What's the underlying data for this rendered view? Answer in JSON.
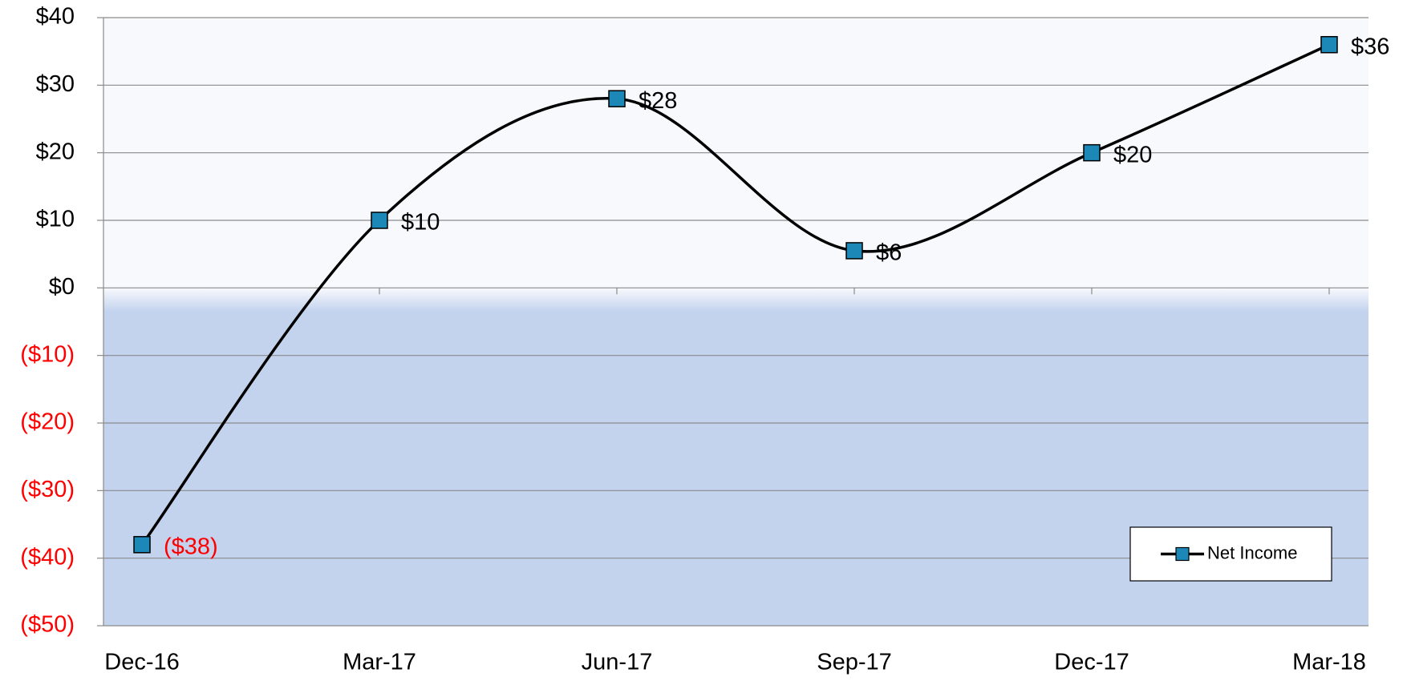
{
  "chart_data": {
    "type": "line",
    "categories": [
      "Dec-16",
      "Mar-17",
      "Jun-17",
      "Sep-17",
      "Dec-17",
      "Mar-18"
    ],
    "series": [
      {
        "name": "Net Income",
        "color": "#000000",
        "marker_color": "#1b88b8",
        "values": [
          -38,
          10,
          28,
          5.5,
          20,
          36
        ],
        "value_labels": [
          "($38)",
          "$10",
          "$28",
          "$6",
          "$20",
          "$36"
        ]
      }
    ],
    "ylim": [
      -50,
      40
    ],
    "yticks": [
      {
        "value": -50,
        "label": "($50)"
      },
      {
        "value": -40,
        "label": "($40)"
      },
      {
        "value": -30,
        "label": "($30)"
      },
      {
        "value": -20,
        "label": "($20)"
      },
      {
        "value": -10,
        "label": "($10)"
      },
      {
        "value": 0,
        "label": "$0"
      },
      {
        "value": 10,
        "label": "$10"
      },
      {
        "value": 20,
        "label": "$20"
      },
      {
        "value": 30,
        "label": "$30"
      },
      {
        "value": 40,
        "label": "$40"
      }
    ],
    "grid": true,
    "smooth": true,
    "negative_color": "#ff0000",
    "legend": "lower right"
  }
}
